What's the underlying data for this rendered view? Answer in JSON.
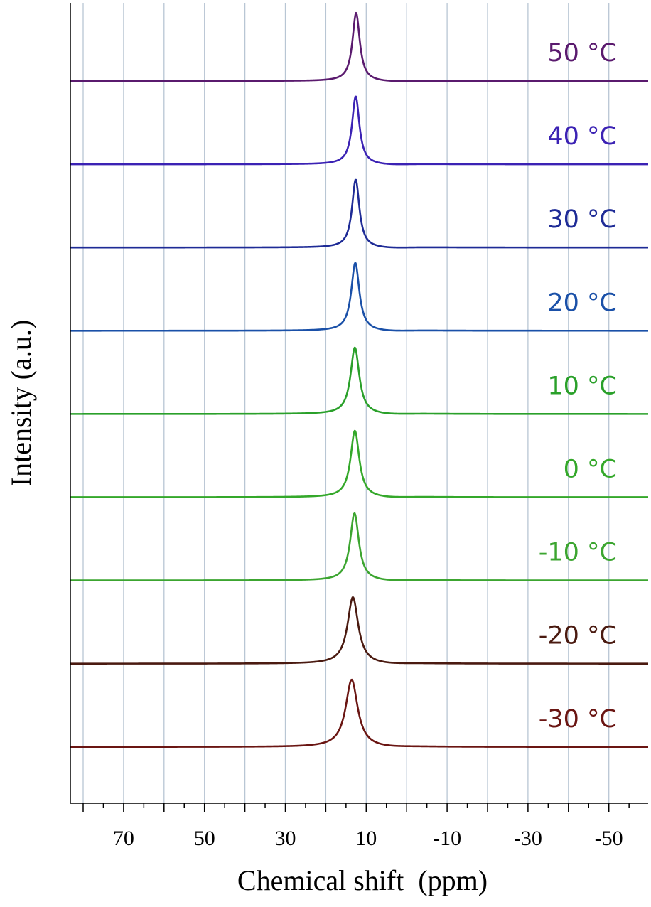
{
  "chart_data": {
    "type": "line",
    "xlabel": "Chemical shift  (ppm)",
    "ylabel": "Intensity (a.u.)",
    "xlim": [
      83,
      -60
    ],
    "x_reversed": true,
    "x_ticks": [
      70,
      50,
      30,
      10,
      -10,
      -30,
      -50
    ],
    "x_tick_labels": [
      "70",
      "50",
      "30",
      "10",
      "-10",
      "-30",
      "-50"
    ],
    "gridlines_x": [
      80,
      70,
      60,
      50,
      40,
      30,
      20,
      10,
      0,
      -10,
      -20,
      -30,
      -40,
      -50
    ],
    "grid": true,
    "stacked_offset": true,
    "series": [
      {
        "name": "50 °C",
        "color": "#5a1a6e",
        "peak_ppm": 12.5,
        "peak_height": 0.87,
        "width_ppm": 1.1
      },
      {
        "name": "40 °C",
        "color": "#3b22b4",
        "peak_ppm": 12.6,
        "peak_height": 0.87,
        "width_ppm": 1.1
      },
      {
        "name": "30 °C",
        "color": "#1e2b96",
        "peak_ppm": 12.6,
        "peak_height": 0.87,
        "width_ppm": 1.1
      },
      {
        "name": "20 °C",
        "color": "#1a50a8",
        "peak_ppm": 12.7,
        "peak_height": 0.87,
        "width_ppm": 1.2
      },
      {
        "name": "10 °C",
        "color": "#2aa02a",
        "peak_ppm": 12.8,
        "peak_height": 0.85,
        "width_ppm": 1.3
      },
      {
        "name": "0 °C",
        "color": "#34a82a",
        "peak_ppm": 12.8,
        "peak_height": 0.85,
        "width_ppm": 1.3
      },
      {
        "name": "-10 °C",
        "color": "#3ca530",
        "peak_ppm": 12.9,
        "peak_height": 0.86,
        "width_ppm": 1.3
      },
      {
        "name": "-20 °C",
        "color": "#4a1a10",
        "peak_ppm": 13.3,
        "peak_height": 0.85,
        "width_ppm": 1.6
      },
      {
        "name": "-30 °C",
        "color": "#6a1512",
        "peak_ppm": 13.6,
        "peak_height": 0.86,
        "width_ppm": 1.8
      }
    ]
  }
}
